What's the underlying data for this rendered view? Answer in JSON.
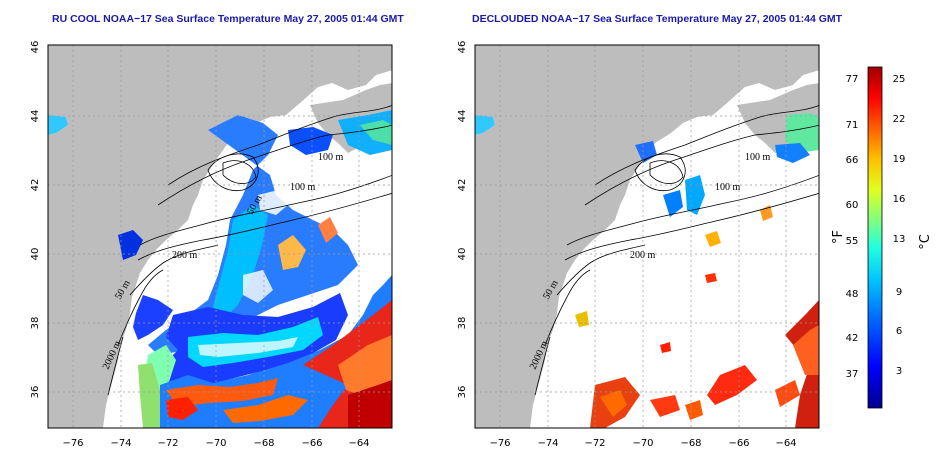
{
  "panels": [
    {
      "title": "RU COOL NOAA−17 Sea Surface Temperature May 27, 2005 01:44 GMT",
      "contour_labels": [
        "100 m",
        "100 m",
        "50 m",
        "200 m",
        "50 m",
        "2000 m"
      ]
    },
    {
      "title": "DECLOUDED NOAA−17 Sea Surface Temperature May 27, 2005 01:44 GMT",
      "contour_labels": [
        "100 m",
        "100 m",
        "200 m",
        "50 m",
        "2000 m"
      ]
    }
  ],
  "axes": {
    "x_ticks": [
      "−76",
      "−74",
      "−72",
      "−70",
      "−68",
      "−66",
      "−64"
    ],
    "y_ticks": [
      "36",
      "38",
      "40",
      "42",
      "44",
      "46"
    ]
  },
  "colorbar": {
    "fahrenheit_ticks": [
      "77",
      "71",
      "66",
      "60",
      "55",
      "48",
      "42",
      "37"
    ],
    "celsius_ticks": [
      "25",
      "22",
      "19",
      "16",
      "13",
      "9",
      "6",
      "3"
    ],
    "fahrenheit_unit": "°F",
    "celsius_unit": "°C"
  },
  "colors": {
    "land": "#bdbdbd",
    "title": "#1a1aa8",
    "colormap": [
      "#00008f",
      "#0000ff",
      "#0060ff",
      "#00c0ff",
      "#20ffe0",
      "#80ff80",
      "#e0ff20",
      "#ffc000",
      "#ff6000",
      "#ff0000",
      "#9f0000"
    ]
  }
}
